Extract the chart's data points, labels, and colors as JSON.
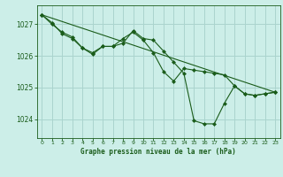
{
  "background_color": "#cceee8",
  "grid_color": "#aad4ce",
  "line_color": "#1a5c1a",
  "title": "Graphe pression niveau de la mer (hPa)",
  "xlim": [
    -0.5,
    23.5
  ],
  "ylim": [
    1023.4,
    1027.6
  ],
  "yticks": [
    1024,
    1025,
    1026,
    1027
  ],
  "xticks": [
    0,
    1,
    2,
    3,
    4,
    5,
    6,
    7,
    8,
    9,
    10,
    11,
    12,
    13,
    14,
    15,
    16,
    17,
    18,
    19,
    20,
    21,
    22,
    23
  ],
  "series": [
    {
      "x": [
        0,
        1,
        2,
        3,
        4,
        5,
        6,
        7,
        8,
        9,
        10,
        11,
        12,
        13,
        14,
        15,
        16,
        17,
        18,
        19,
        20,
        21,
        22,
        23
      ],
      "y": [
        1027.3,
        1027.0,
        1026.75,
        1026.6,
        1026.25,
        1026.1,
        1026.3,
        1026.3,
        1026.4,
        1026.8,
        1026.55,
        1026.5,
        1026.15,
        1025.8,
        1025.45,
        1023.95,
        1023.85,
        1023.85,
        1024.5,
        1025.05,
        1024.8,
        1024.75,
        1024.8,
        1024.85
      ]
    },
    {
      "x": [
        0,
        1,
        2,
        3,
        4,
        5,
        6,
        7,
        8,
        9,
        10,
        11,
        12,
        13,
        14,
        15,
        16,
        17,
        18,
        19,
        20,
        21,
        22,
        23
      ],
      "y": [
        1027.3,
        1027.05,
        1026.7,
        1026.55,
        1026.25,
        1026.05,
        1026.3,
        1026.3,
        1026.55,
        1026.75,
        1026.5,
        1026.1,
        1025.5,
        1025.2,
        1025.6,
        1025.55,
        1025.5,
        1025.45,
        1025.4,
        1025.05,
        1024.8,
        1024.75,
        1024.8,
        1024.85
      ]
    },
    {
      "x": [
        0,
        23
      ],
      "y": [
        1027.3,
        1024.85
      ]
    }
  ]
}
